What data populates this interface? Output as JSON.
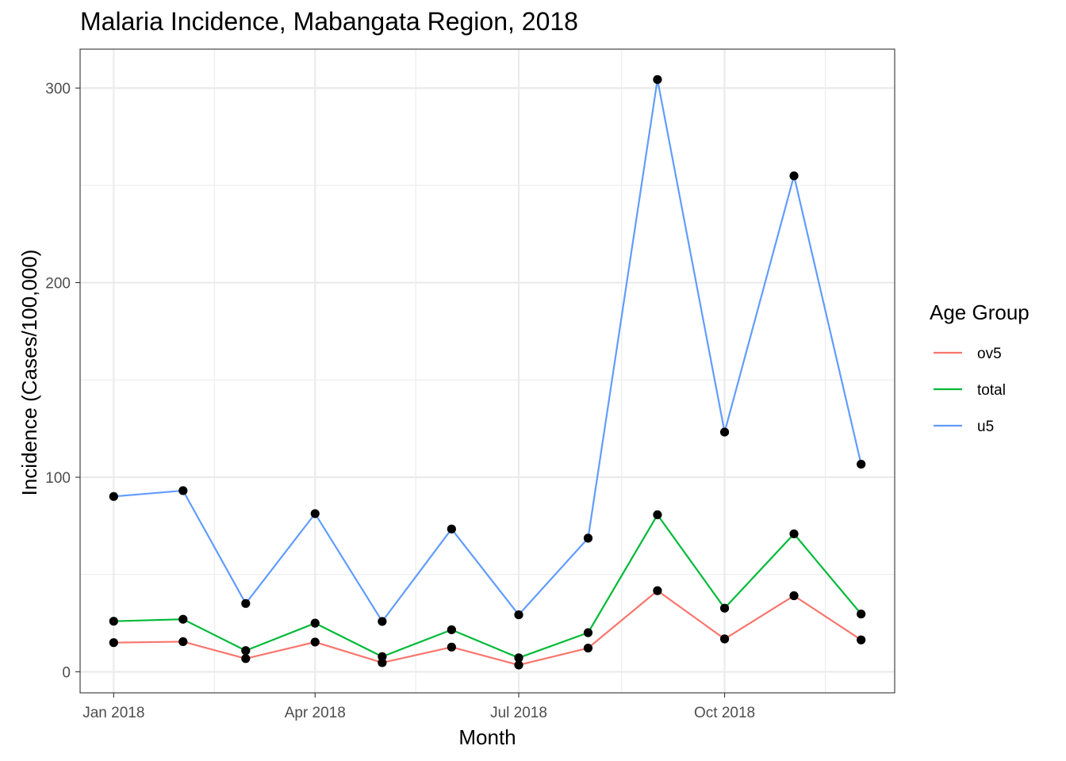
{
  "chart_data": {
    "type": "line",
    "title": "Malaria Incidence, Mabangata Region, 2018",
    "xlabel": "Month",
    "ylabel": "Incidence (Cases/100,000)",
    "x": [
      "2018-01-01",
      "2018-02-01",
      "2018-03-01",
      "2018-04-01",
      "2018-05-01",
      "2018-06-01",
      "2018-07-01",
      "2018-08-01",
      "2018-09-01",
      "2018-10-01",
      "2018-11-01",
      "2018-12-01"
    ],
    "x_ticks": [
      "2018-01-01",
      "2018-04-01",
      "2018-07-01",
      "2018-10-01"
    ],
    "x_tick_labels": [
      "Jan 2018",
      "Apr 2018",
      "Jul 2018",
      "Oct 2018"
    ],
    "xlim": [
      "2017-12-17",
      "2018-12-16"
    ],
    "ylim": [
      -10.8,
      320
    ],
    "y_ticks": [
      0,
      100,
      200,
      300
    ],
    "y_tick_labels": [
      "0",
      "100",
      "200",
      "300"
    ],
    "grid": true,
    "legend": {
      "title": "Age Group",
      "position": "right"
    },
    "point_color": "#000000",
    "series": [
      {
        "name": "ov5",
        "color": "#F8766D",
        "values": [
          15,
          15.5,
          6.8,
          15.3,
          4.7,
          12.7,
          3.5,
          12.2,
          41.7,
          16.9,
          39.1,
          16.4
        ]
      },
      {
        "name": "total",
        "color": "#00BA38",
        "values": [
          26,
          27,
          10.9,
          25,
          7.8,
          21.6,
          7.2,
          20.1,
          80.7,
          32.7,
          70.9,
          29.7
        ]
      },
      {
        "name": "u5",
        "color": "#619CFF",
        "values": [
          90.1,
          93.1,
          35.1,
          81.3,
          25.9,
          73.4,
          29.3,
          68.7,
          304.4,
          123.2,
          254.9,
          106.7
        ]
      }
    ]
  }
}
